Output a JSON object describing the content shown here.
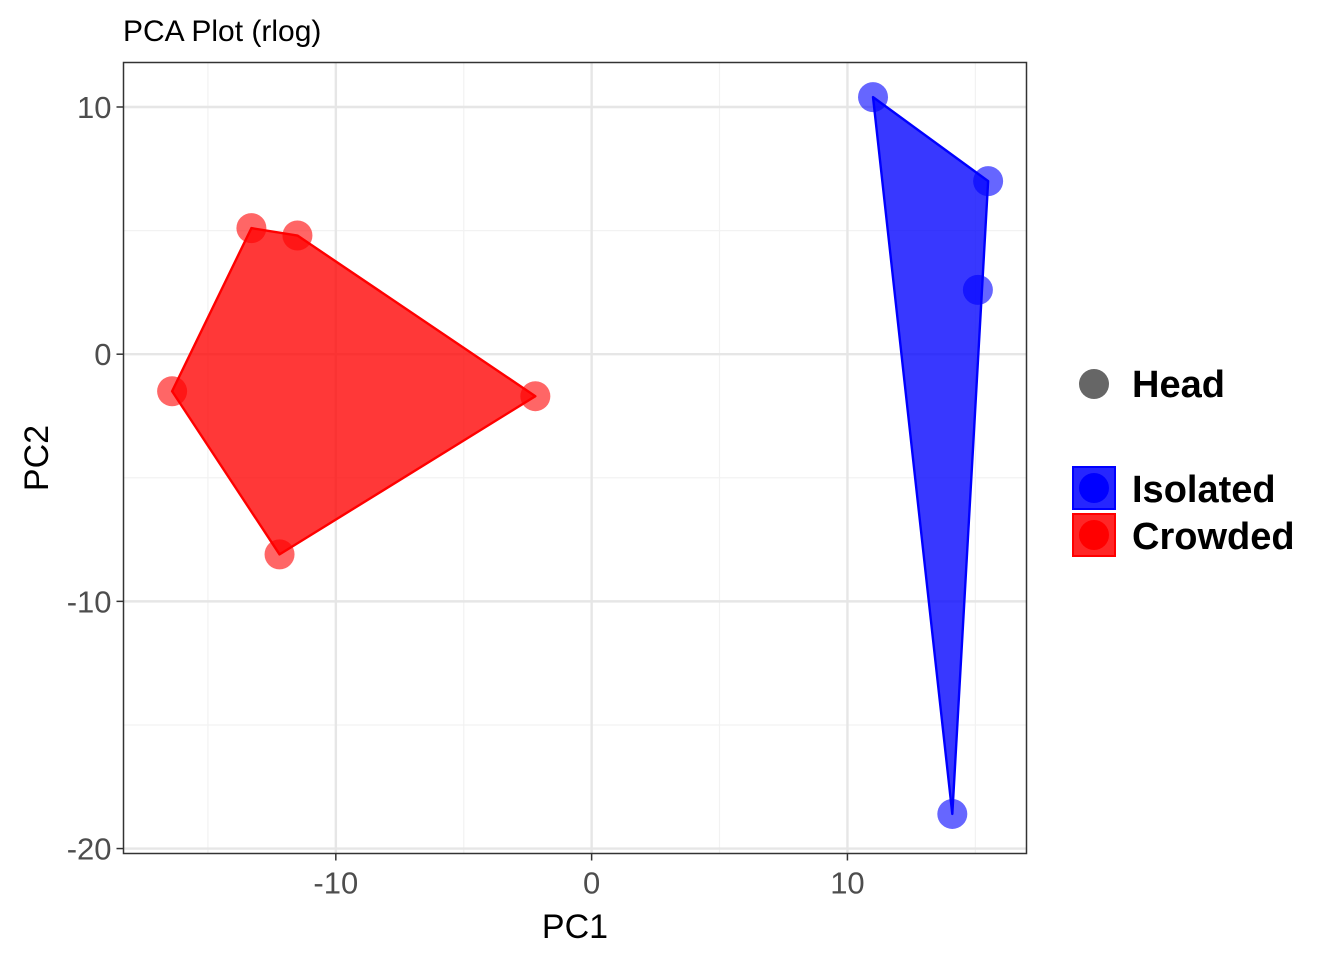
{
  "chart_data": {
    "type": "scatter",
    "title": "PCA Plot (rlog)",
    "xlabel": "PC1",
    "ylabel": "PC2",
    "xlim": [
      -18.3,
      17
    ],
    "ylim": [
      -20.2,
      11.8
    ],
    "x_ticks": [
      -10,
      0,
      10
    ],
    "x_tick_labels": [
      "-10",
      "0",
      "10"
    ],
    "y_ticks": [
      -20,
      -10,
      0,
      10
    ],
    "y_tick_labels": [
      "-20",
      "-10",
      "0",
      "10"
    ],
    "x_minor_ticks": [
      -15,
      -5,
      5,
      15
    ],
    "y_minor_ticks": [
      -15,
      -5,
      5
    ],
    "grid": true,
    "shape_legend": {
      "label": "Head",
      "color": "#666666"
    },
    "legend_position": "right",
    "series": [
      {
        "name": "Isolated",
        "color": "#0000ff",
        "points": [
          {
            "x": 11.0,
            "y": 10.4
          },
          {
            "x": 15.5,
            "y": 7.0
          },
          {
            "x": 15.1,
            "y": 2.6
          },
          {
            "x": 14.1,
            "y": -18.6
          }
        ]
      },
      {
        "name": "Crowded",
        "color": "#ff0000",
        "points": [
          {
            "x": -13.3,
            "y": 5.1
          },
          {
            "x": -11.5,
            "y": 4.8
          },
          {
            "x": -16.4,
            "y": -1.5
          },
          {
            "x": -2.2,
            "y": -1.7
          },
          {
            "x": -12.2,
            "y": -8.1
          }
        ]
      }
    ]
  }
}
